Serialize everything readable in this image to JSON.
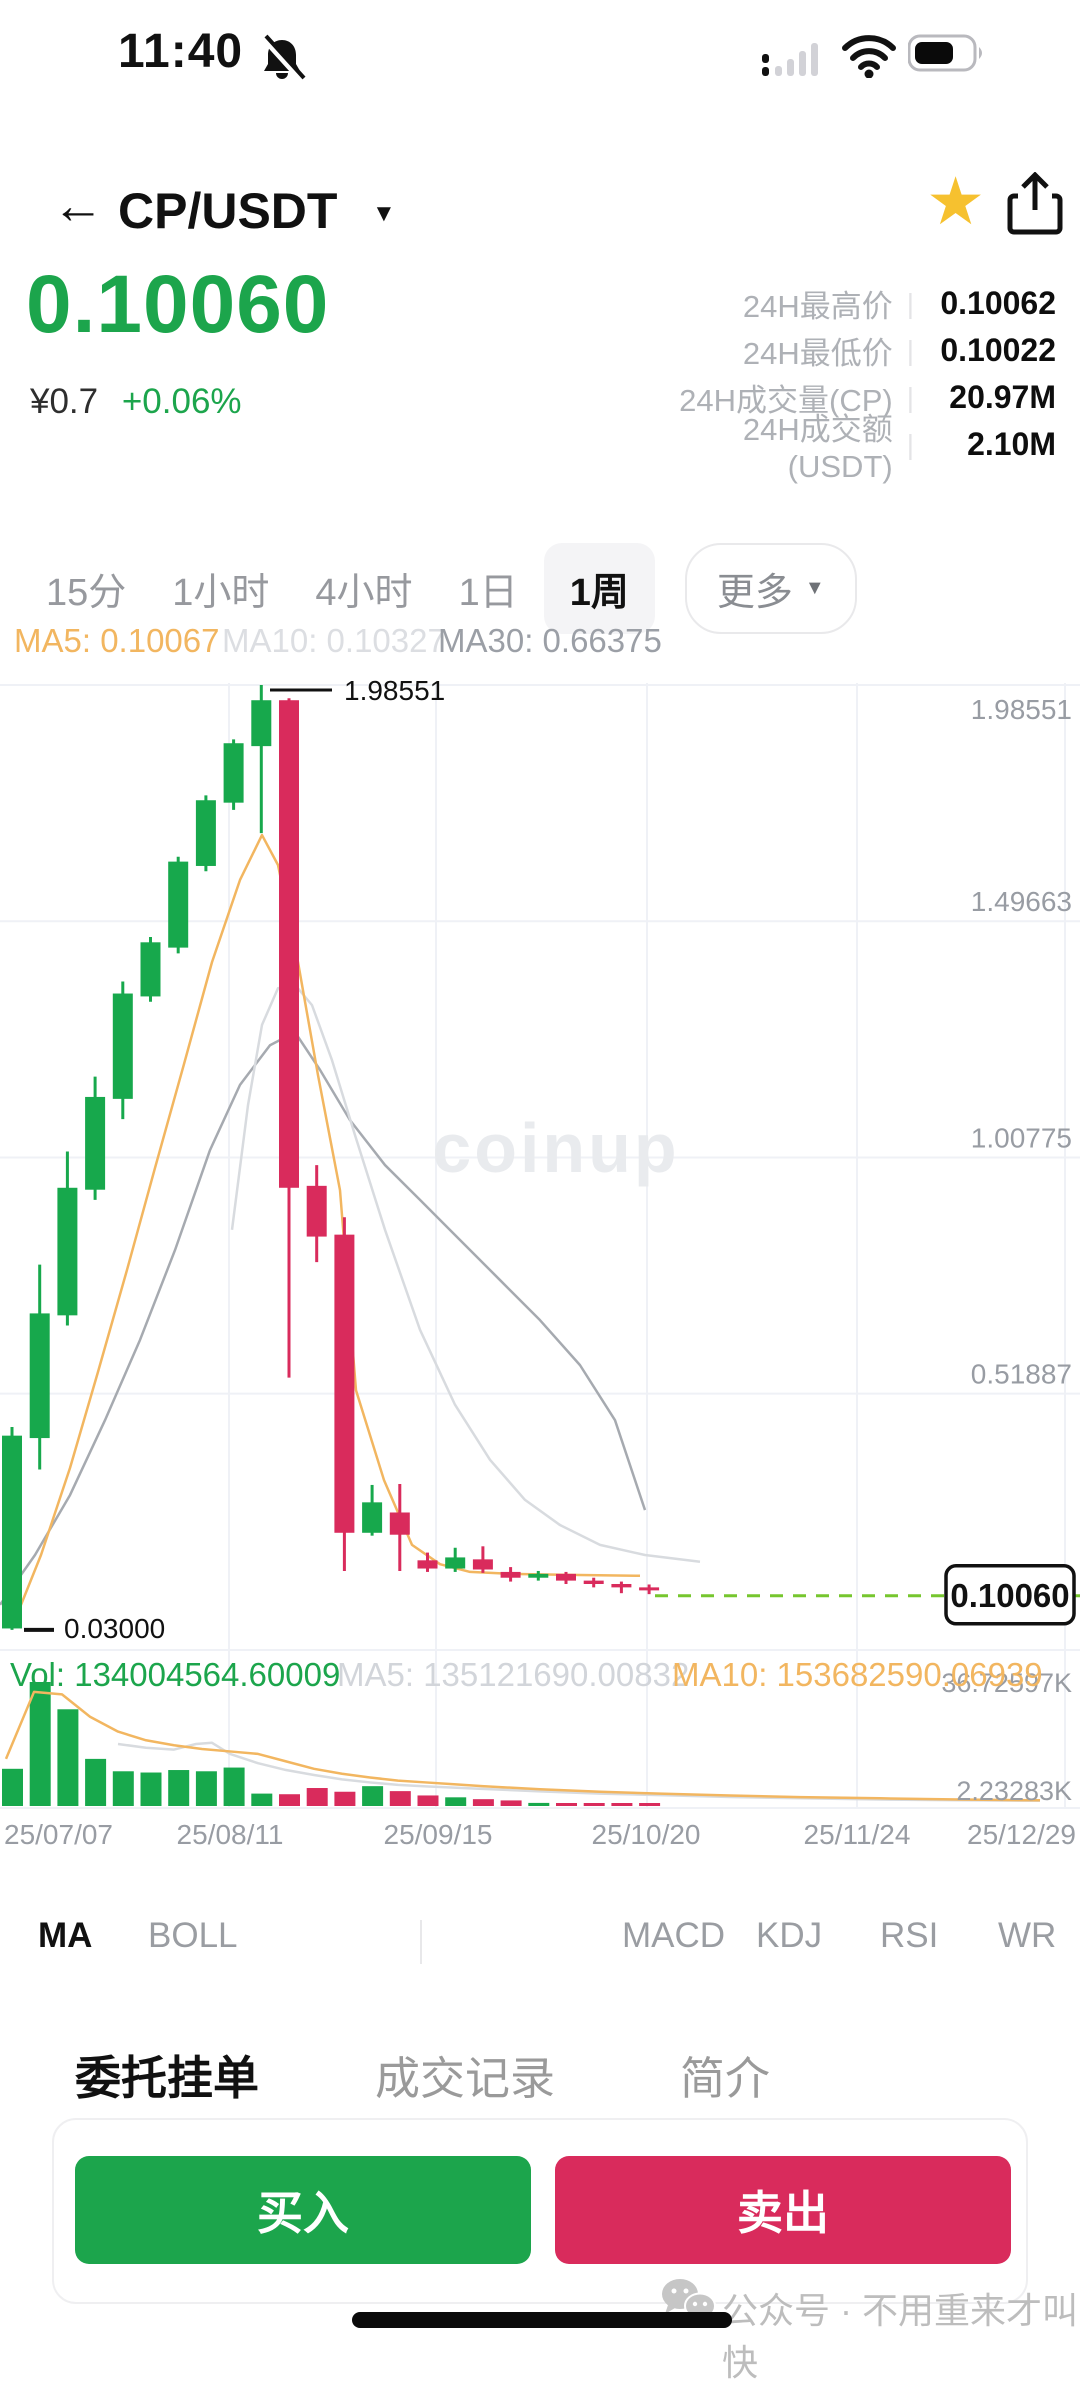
{
  "status_bar": {
    "time": "11:40"
  },
  "header": {
    "pair": "CP/USDT"
  },
  "price": {
    "last": "0.10060",
    "fiat": "¥0.7",
    "change": "+0.06%"
  },
  "stats": [
    {
      "label": "24H最高价",
      "value": "0.10062"
    },
    {
      "label": "24H最低价",
      "value": "0.10022"
    },
    {
      "label": "24H成交量(CP)",
      "value": "20.97M"
    },
    {
      "label": "24H成交额(USDT)",
      "value": "2.10M"
    }
  ],
  "timeframes": {
    "items": [
      "15分",
      "1小时",
      "4小时",
      "1日",
      "1周"
    ],
    "selected": "1周",
    "more_label": "更多"
  },
  "ma_labels": [
    {
      "text": "MA5: 0.10067",
      "color": "#F2B660"
    },
    {
      "text": "MA10: 0.10327",
      "color": "#DCDEE2"
    },
    {
      "text": "MA30: 0.66375",
      "color": "#9B9FA6"
    }
  ],
  "volume_labels": {
    "vol": "Vol: 134004564.60009",
    "ma5": "MA5: 135121690.00832",
    "ma10": "MA10: 153682590.06939"
  },
  "indicators": {
    "items": [
      "MA",
      "BOLL",
      "MACD",
      "KDJ",
      "RSI",
      "WR"
    ],
    "selected": "MA"
  },
  "bottom_tabs": {
    "items": [
      "委托挂单",
      "成交记录",
      "简介"
    ],
    "selected": "委托挂单"
  },
  "actions": {
    "buy": "买入",
    "sell": "卖出"
  },
  "footer": {
    "text": "公众号 · 不用重来才叫快"
  },
  "colors": {
    "up": "#17A84C",
    "down": "#D92B5C",
    "accent_green": "#1CA54C",
    "ma_orange": "#F2B660",
    "ma_gray_light": "#D8DBDF",
    "ma_gray_dark": "#A6AAB0",
    "dashed_line": "#76C62E",
    "grid": "#EFF1F6",
    "axis_text": "#989CA3",
    "star": "#F6C12F",
    "watermark": "#E9EBEE"
  },
  "chart_data": {
    "type": "candlestick",
    "symbol": "CP/USDT",
    "interval": "1周",
    "watermark": "coinup",
    "y_ticks": [
      1.98551,
      1.49663,
      1.00775,
      0.51887
    ],
    "x_ticks": [
      "25/07/07",
      "25/08/11",
      "25/09/15",
      "25/10/20",
      "25/11/24",
      "25/12/29"
    ],
    "high_marker": "1.98551",
    "low_marker": "0.03000",
    "last_price": "0.10060",
    "last_price_value": 0.1006,
    "bottom_axis_label": "0.03000",
    "candles": [
      {
        "o": 0.033,
        "h": 0.45,
        "l": 0.03,
        "c": 0.432
      },
      {
        "o": 0.427,
        "h": 0.786,
        "l": 0.362,
        "c": 0.685
      },
      {
        "o": 0.681,
        "h": 1.02,
        "l": 0.66,
        "c": 0.945
      },
      {
        "o": 0.941,
        "h": 1.175,
        "l": 0.92,
        "c": 1.133
      },
      {
        "o": 1.129,
        "h": 1.372,
        "l": 1.087,
        "c": 1.347
      },
      {
        "o": 1.341,
        "h": 1.464,
        "l": 1.33,
        "c": 1.453
      },
      {
        "o": 1.442,
        "h": 1.63,
        "l": 1.43,
        "c": 1.62
      },
      {
        "o": 1.611,
        "h": 1.757,
        "l": 1.6,
        "c": 1.747
      },
      {
        "o": 1.742,
        "h": 1.873,
        "l": 1.727,
        "c": 1.865
      },
      {
        "o": 1.859,
        "h": 1.98551,
        "l": 1.679,
        "c": 1.954
      },
      {
        "o": 1.954,
        "h": 1.958,
        "l": 0.552,
        "c": 0.945
      },
      {
        "o": 0.949,
        "h": 0.992,
        "l": 0.791,
        "c": 0.844
      },
      {
        "o": 0.848,
        "h": 0.884,
        "l": 0.152,
        "c": 0.231
      },
      {
        "o": 0.231,
        "h": 0.33,
        "l": 0.225,
        "c": 0.294
      },
      {
        "o": 0.273,
        "h": 0.332,
        "l": 0.152,
        "c": 0.227
      },
      {
        "o": 0.174,
        "h": 0.19,
        "l": 0.15,
        "c": 0.157
      },
      {
        "o": 0.157,
        "h": 0.2,
        "l": 0.15,
        "c": 0.18
      },
      {
        "o": 0.176,
        "h": 0.203,
        "l": 0.148,
        "c": 0.155
      },
      {
        "o": 0.15,
        "h": 0.16,
        "l": 0.13,
        "c": 0.138
      },
      {
        "o": 0.138,
        "h": 0.152,
        "l": 0.132,
        "c": 0.146
      },
      {
        "o": 0.146,
        "h": 0.15,
        "l": 0.125,
        "c": 0.132
      },
      {
        "o": 0.132,
        "h": 0.138,
        "l": 0.118,
        "c": 0.125
      },
      {
        "o": 0.125,
        "h": 0.13,
        "l": 0.106,
        "c": 0.118
      },
      {
        "o": 0.118,
        "h": 0.124,
        "l": 0.104,
        "c": 0.112
      }
    ],
    "volume": {
      "axis_top": "36.72597K",
      "axis_bottom": "2.23283K",
      "bars": [
        0.3,
        1.0,
        0.78,
        0.38,
        0.28,
        0.27,
        0.29,
        0.28,
        0.31,
        0.1,
        0.095,
        0.145,
        0.115,
        0.16,
        0.12,
        0.085,
        0.07,
        0.055,
        0.045,
        0.025,
        0.02,
        0.018,
        0.015,
        0.012
      ]
    },
    "ma_price": {
      "ma5": [
        [
          13,
          0.0405
        ],
        [
          41,
          0.185
        ],
        [
          70,
          0.365
        ],
        [
          98,
          0.564
        ],
        [
          127,
          0.775
        ],
        [
          155,
          0.986
        ],
        [
          184,
          1.201
        ],
        [
          212,
          1.412
        ],
        [
          240,
          1.582
        ],
        [
          262,
          1.675
        ],
        [
          278,
          1.613
        ],
        [
          298,
          1.412
        ],
        [
          318,
          1.178
        ],
        [
          340,
          0.94
        ],
        [
          356,
          0.526
        ],
        [
          384,
          0.34
        ],
        [
          412,
          0.206
        ],
        [
          440,
          0.166
        ],
        [
          470,
          0.15
        ],
        [
          510,
          0.146
        ],
        [
          570,
          0.144
        ],
        [
          640,
          0.142
        ]
      ],
      "ma10": [
        [
          232,
          0.858
        ],
        [
          248,
          1.116
        ],
        [
          262,
          1.282
        ],
        [
          278,
          1.358
        ],
        [
          295,
          1.365
        ],
        [
          312,
          1.323
        ],
        [
          332,
          1.209
        ],
        [
          355,
          1.054
        ],
        [
          385,
          0.858
        ],
        [
          420,
          0.651
        ],
        [
          455,
          0.496
        ],
        [
          490,
          0.382
        ],
        [
          525,
          0.299
        ],
        [
          560,
          0.247
        ],
        [
          600,
          0.206
        ],
        [
          645,
          0.185
        ],
        [
          700,
          0.171
        ]
      ],
      "ma30": [
        [
          0,
          0.082
        ],
        [
          35,
          0.185
        ],
        [
          70,
          0.309
        ],
        [
          105,
          0.464
        ],
        [
          140,
          0.63
        ],
        [
          175,
          0.816
        ],
        [
          210,
          1.023
        ],
        [
          240,
          1.158
        ],
        [
          270,
          1.24
        ],
        [
          295,
          1.267
        ],
        [
          320,
          1.189
        ],
        [
          350,
          1.085
        ],
        [
          385,
          0.992
        ],
        [
          420,
          0.92
        ],
        [
          460,
          0.837
        ],
        [
          500,
          0.754
        ],
        [
          540,
          0.671
        ],
        [
          580,
          0.578
        ],
        [
          615,
          0.464
        ],
        [
          645,
          0.278
        ]
      ]
    },
    "ma_volume": {
      "ma5": [
        [
          6,
          0.38
        ],
        [
          34,
          0.92
        ],
        [
          62,
          0.9
        ],
        [
          90,
          0.72
        ],
        [
          118,
          0.6
        ],
        [
          146,
          0.53
        ],
        [
          174,
          0.49
        ],
        [
          202,
          0.46
        ],
        [
          230,
          0.44
        ],
        [
          258,
          0.42
        ],
        [
          286,
          0.36
        ],
        [
          314,
          0.3
        ],
        [
          342,
          0.26
        ],
        [
          370,
          0.23
        ],
        [
          398,
          0.205
        ],
        [
          426,
          0.19
        ],
        [
          454,
          0.175
        ],
        [
          482,
          0.16
        ],
        [
          540,
          0.135
        ],
        [
          600,
          0.115
        ],
        [
          660,
          0.1
        ],
        [
          730,
          0.085
        ],
        [
          800,
          0.072
        ],
        [
          880,
          0.062
        ],
        [
          960,
          0.052
        ],
        [
          1040,
          0.046
        ]
      ],
      "ma10": [
        [
          118,
          0.5
        ],
        [
          146,
          0.47
        ],
        [
          174,
          0.455
        ],
        [
          196,
          0.5
        ],
        [
          212,
          0.51
        ],
        [
          230,
          0.42
        ],
        [
          258,
          0.345
        ],
        [
          286,
          0.29
        ],
        [
          314,
          0.25
        ],
        [
          342,
          0.215
        ],
        [
          370,
          0.19
        ],
        [
          398,
          0.17
        ],
        [
          426,
          0.158
        ],
        [
          454,
          0.148
        ],
        [
          482,
          0.138
        ],
        [
          540,
          0.118
        ],
        [
          600,
          0.1
        ],
        [
          660,
          0.088
        ],
        [
          730,
          0.073
        ],
        [
          800,
          0.062
        ],
        [
          880,
          0.052
        ],
        [
          960,
          0.046
        ],
        [
          1040,
          0.042
        ]
      ]
    }
  }
}
